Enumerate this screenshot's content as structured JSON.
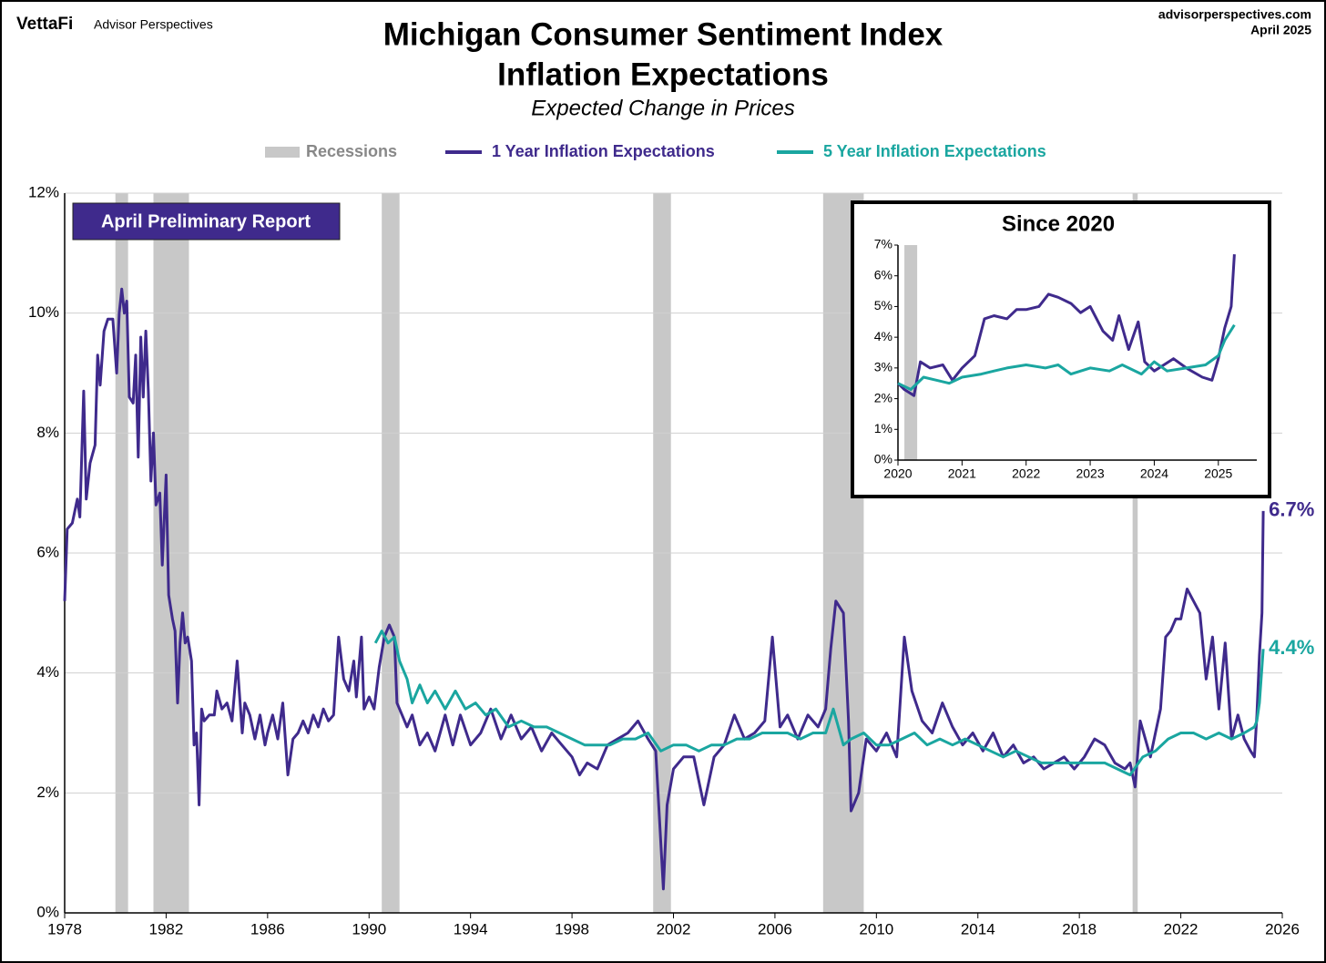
{
  "header": {
    "brand": "VettaFi",
    "brand_sub": "Advisor Perspectives",
    "site": "advisorperspectives.com",
    "date": "April 2025",
    "badge": "April Preliminary Report"
  },
  "chart_data": [
    {
      "type": "line",
      "title": "Michigan Consumer Sentiment Index",
      "subtitle": "Inflation Expectations",
      "caption": "Expected Change in Prices",
      "xlim": [
        1978,
        2026
      ],
      "xticks": [
        1978,
        1982,
        1986,
        1990,
        1994,
        1998,
        2002,
        2006,
        2010,
        2014,
        2018,
        2022,
        2026
      ],
      "ylim": [
        0,
        12
      ],
      "yticks": [
        {
          "value": 0,
          "label": "0%"
        },
        {
          "value": 2,
          "label": "2%"
        },
        {
          "value": 4,
          "label": "4%"
        },
        {
          "value": 6,
          "label": "6%"
        },
        {
          "value": 8,
          "label": "8%"
        },
        {
          "value": 10,
          "label": "10%"
        },
        {
          "value": 12,
          "label": "12%"
        }
      ],
      "grid": true,
      "legend": "top",
      "recessions": {
        "name": "Recessions",
        "color": "#c8c8c8",
        "ranges": [
          [
            1980.0,
            1980.5
          ],
          [
            1981.5,
            1982.9
          ],
          [
            1990.5,
            1991.2
          ],
          [
            2001.2,
            2001.9
          ],
          [
            2007.9,
            2009.5
          ],
          [
            2020.1,
            2020.3
          ]
        ]
      },
      "series": [
        {
          "name": "1 Year Inflation Expectations",
          "color": "#3f2a8c",
          "end_label": "6.7%",
          "x": [
            1978.0,
            1978.1,
            1978.3,
            1978.5,
            1978.6,
            1978.75,
            1978.85,
            1979.0,
            1979.2,
            1979.3,
            1979.4,
            1979.55,
            1979.7,
            1979.9,
            1980.05,
            1980.15,
            1980.25,
            1980.35,
            1980.45,
            1980.55,
            1980.7,
            1980.8,
            1980.9,
            1981.0,
            1981.1,
            1981.2,
            1981.3,
            1981.4,
            1981.5,
            1981.6,
            1981.75,
            1981.85,
            1982.0,
            1982.1,
            1982.25,
            1982.35,
            1982.45,
            1982.55,
            1982.65,
            1982.75,
            1982.85,
            1983.0,
            1983.1,
            1983.2,
            1983.3,
            1983.4,
            1983.5,
            1983.7,
            1983.9,
            1984.0,
            1984.2,
            1984.4,
            1984.6,
            1984.8,
            1985.0,
            1985.1,
            1985.3,
            1985.5,
            1985.7,
            1985.9,
            1986.0,
            1986.2,
            1986.4,
            1986.6,
            1986.8,
            1987.0,
            1987.2,
            1987.4,
            1987.6,
            1987.8,
            1988.0,
            1988.2,
            1988.4,
            1988.6,
            1988.8,
            1989.0,
            1989.2,
            1989.4,
            1989.5,
            1989.7,
            1989.8,
            1990.0,
            1990.2,
            1990.4,
            1990.6,
            1990.8,
            1991.0,
            1991.1,
            1991.3,
            1991.5,
            1991.7,
            1992.0,
            1992.3,
            1992.6,
            1993.0,
            1993.3,
            1993.6,
            1994.0,
            1994.4,
            1994.8,
            1995.2,
            1995.6,
            1996.0,
            1996.4,
            1996.8,
            1997.2,
            1997.6,
            1998.0,
            1998.3,
            1998.6,
            1999.0,
            1999.4,
            1999.8,
            2000.2,
            2000.6,
            2001.0,
            2001.3,
            2001.6,
            2001.75,
            2002.0,
            2002.4,
            2002.8,
            2003.2,
            2003.6,
            2004.0,
            2004.4,
            2004.8,
            2005.2,
            2005.6,
            2005.9,
            2006.2,
            2006.5,
            2006.9,
            2007.3,
            2007.7,
            2008.0,
            2008.2,
            2008.4,
            2008.7,
            2008.9,
            2009.0,
            2009.3,
            2009.6,
            2010.0,
            2010.4,
            2010.8,
            2011.1,
            2011.4,
            2011.8,
            2012.2,
            2012.6,
            2013.0,
            2013.4,
            2013.8,
            2014.2,
            2014.6,
            2015.0,
            2015.4,
            2015.8,
            2016.2,
            2016.6,
            2017.0,
            2017.4,
            2017.8,
            2018.2,
            2018.6,
            2019.0,
            2019.4,
            2019.8,
            2020.0,
            2020.2,
            2020.4,
            2020.8,
            2021.0,
            2021.2,
            2021.4,
            2021.6,
            2021.8,
            2022.0,
            2022.25,
            2022.5,
            2022.75,
            2023.0,
            2023.25,
            2023.5,
            2023.75,
            2024.0,
            2024.25,
            2024.5,
            2024.75,
            2024.9,
            2025.0,
            2025.1,
            2025.2,
            2025.25
          ],
          "values": [
            5.2,
            6.4,
            6.5,
            6.9,
            6.6,
            8.7,
            6.9,
            7.5,
            7.8,
            9.3,
            8.8,
            9.7,
            9.9,
            9.9,
            9.0,
            10.0,
            10.4,
            10.0,
            10.2,
            8.6,
            8.5,
            9.3,
            7.6,
            9.6,
            8.6,
            9.7,
            8.7,
            7.2,
            8.0,
            6.8,
            7.0,
            5.8,
            7.3,
            5.3,
            4.9,
            4.7,
            3.5,
            4.5,
            5.0,
            4.5,
            4.6,
            4.2,
            2.8,
            3.0,
            1.8,
            3.4,
            3.2,
            3.3,
            3.3,
            3.7,
            3.4,
            3.5,
            3.2,
            4.2,
            3.0,
            3.5,
            3.3,
            2.9,
            3.3,
            2.8,
            3.0,
            3.3,
            2.9,
            3.5,
            2.3,
            2.9,
            3.0,
            3.2,
            3.0,
            3.3,
            3.1,
            3.4,
            3.2,
            3.3,
            4.6,
            3.9,
            3.7,
            4.2,
            3.6,
            4.6,
            3.4,
            3.6,
            3.4,
            4.1,
            4.6,
            4.8,
            4.6,
            3.5,
            3.3,
            3.1,
            3.3,
            2.8,
            3.0,
            2.7,
            3.3,
            2.8,
            3.3,
            2.8,
            3.0,
            3.4,
            2.9,
            3.3,
            2.9,
            3.1,
            2.7,
            3.0,
            2.8,
            2.6,
            2.3,
            2.5,
            2.4,
            2.8,
            2.9,
            3.0,
            3.2,
            2.9,
            2.7,
            0.4,
            1.8,
            2.4,
            2.6,
            2.6,
            1.8,
            2.6,
            2.8,
            3.3,
            2.9,
            3.0,
            3.2,
            4.6,
            3.1,
            3.3,
            2.9,
            3.3,
            3.1,
            3.4,
            4.4,
            5.2,
            5.0,
            3.2,
            1.7,
            2.0,
            2.9,
            2.7,
            3.0,
            2.6,
            4.6,
            3.7,
            3.2,
            3.0,
            3.5,
            3.1,
            2.8,
            3.0,
            2.7,
            3.0,
            2.6,
            2.8,
            2.5,
            2.6,
            2.4,
            2.5,
            2.6,
            2.4,
            2.6,
            2.9,
            2.8,
            2.5,
            2.4,
            2.5,
            2.1,
            3.2,
            2.6,
            3.0,
            3.4,
            4.6,
            4.7,
            4.9,
            4.9,
            5.4,
            5.2,
            5.0,
            3.9,
            4.6,
            3.4,
            4.5,
            2.9,
            3.3,
            2.9,
            2.7,
            2.6,
            3.3,
            4.3,
            5.0,
            6.7
          ]
        },
        {
          "name": "5 Year Inflation Expectations",
          "color": "#1aa6a0",
          "end_label": "4.4%",
          "x": [
            1990.25,
            1990.5,
            1990.75,
            1991.0,
            1991.2,
            1991.5,
            1991.7,
            1992.0,
            1992.3,
            1992.6,
            1993.0,
            1993.4,
            1993.8,
            1994.2,
            1994.6,
            1995.0,
            1995.5,
            1996.0,
            1996.5,
            1997.0,
            1997.5,
            1998.0,
            1998.5,
            1999.0,
            1999.5,
            2000.0,
            2000.5,
            2001.0,
            2001.5,
            2002.0,
            2002.5,
            2003.0,
            2003.5,
            2004.0,
            2004.5,
            2005.0,
            2005.5,
            2006.0,
            2006.5,
            2007.0,
            2007.5,
            2008.0,
            2008.3,
            2008.7,
            2009.0,
            2009.5,
            2010.0,
            2010.5,
            2011.0,
            2011.5,
            2012.0,
            2012.5,
            2013.0,
            2013.5,
            2014.0,
            2014.5,
            2015.0,
            2015.5,
            2016.0,
            2016.5,
            2017.0,
            2017.5,
            2018.0,
            2018.5,
            2019.0,
            2019.5,
            2020.0,
            2020.5,
            2021.0,
            2021.5,
            2022.0,
            2022.5,
            2023.0,
            2023.5,
            2024.0,
            2024.5,
            2024.9,
            2025.0,
            2025.1,
            2025.2,
            2025.25
          ],
          "values": [
            4.5,
            4.7,
            4.5,
            4.6,
            4.2,
            3.9,
            3.5,
            3.8,
            3.5,
            3.7,
            3.4,
            3.7,
            3.4,
            3.5,
            3.3,
            3.4,
            3.1,
            3.2,
            3.1,
            3.1,
            3.0,
            2.9,
            2.8,
            2.8,
            2.8,
            2.9,
            2.9,
            3.0,
            2.7,
            2.8,
            2.8,
            2.7,
            2.8,
            2.8,
            2.9,
            2.9,
            3.0,
            3.0,
            3.0,
            2.9,
            3.0,
            3.0,
            3.4,
            2.8,
            2.9,
            3.0,
            2.8,
            2.8,
            2.9,
            3.0,
            2.8,
            2.9,
            2.8,
            2.9,
            2.8,
            2.7,
            2.6,
            2.7,
            2.6,
            2.5,
            2.5,
            2.5,
            2.5,
            2.5,
            2.5,
            2.4,
            2.3,
            2.6,
            2.7,
            2.9,
            3.0,
            3.0,
            2.9,
            3.0,
            2.9,
            3.0,
            3.1,
            3.2,
            3.5,
            4.1,
            4.4
          ]
        }
      ]
    },
    {
      "type": "line",
      "title": "Since 2020",
      "xlim": [
        2020,
        2025.6
      ],
      "xticks": [
        2020,
        2021,
        2022,
        2023,
        2024,
        2025
      ],
      "ylim": [
        0,
        7
      ],
      "yticks": [
        {
          "value": 0,
          "label": "0%"
        },
        {
          "value": 1,
          "label": "1%"
        },
        {
          "value": 2,
          "label": "2%"
        },
        {
          "value": 3,
          "label": "3%"
        },
        {
          "value": 4,
          "label": "4%"
        },
        {
          "value": 5,
          "label": "5%"
        },
        {
          "value": 6,
          "label": "6%"
        },
        {
          "value": 7,
          "label": "7%"
        }
      ],
      "grid": false,
      "recessions": {
        "color": "#c8c8c8",
        "ranges": [
          [
            2020.1,
            2020.3
          ]
        ]
      },
      "series": [
        {
          "color": "#3f2a8c",
          "x": [
            2020.0,
            2020.1,
            2020.25,
            2020.35,
            2020.5,
            2020.7,
            2020.85,
            2021.0,
            2021.2,
            2021.35,
            2021.5,
            2021.7,
            2021.85,
            2022.0,
            2022.2,
            2022.35,
            2022.5,
            2022.7,
            2022.85,
            2023.0,
            2023.2,
            2023.35,
            2023.45,
            2023.6,
            2023.75,
            2023.85,
            2024.0,
            2024.15,
            2024.3,
            2024.5,
            2024.75,
            2024.9,
            2025.0,
            2025.1,
            2025.2,
            2025.25
          ],
          "values": [
            2.5,
            2.3,
            2.1,
            3.2,
            3.0,
            3.1,
            2.6,
            3.0,
            3.4,
            4.6,
            4.7,
            4.6,
            4.9,
            4.9,
            5.0,
            5.4,
            5.3,
            5.1,
            4.8,
            5.0,
            4.2,
            3.9,
            4.7,
            3.6,
            4.5,
            3.2,
            2.9,
            3.1,
            3.3,
            3.0,
            2.7,
            2.6,
            3.3,
            4.3,
            5.0,
            6.7
          ]
        },
        {
          "color": "#1aa6a0",
          "x": [
            2020.0,
            2020.2,
            2020.4,
            2020.6,
            2020.8,
            2021.0,
            2021.3,
            2021.5,
            2021.7,
            2022.0,
            2022.3,
            2022.5,
            2022.7,
            2023.0,
            2023.3,
            2023.5,
            2023.8,
            2024.0,
            2024.2,
            2024.5,
            2024.8,
            2025.0,
            2025.1,
            2025.25
          ],
          "values": [
            2.5,
            2.3,
            2.7,
            2.6,
            2.5,
            2.7,
            2.8,
            2.9,
            3.0,
            3.1,
            3.0,
            3.1,
            2.8,
            3.0,
            2.9,
            3.1,
            2.8,
            3.2,
            2.9,
            3.0,
            3.1,
            3.4,
            3.9,
            4.4
          ]
        }
      ]
    }
  ]
}
